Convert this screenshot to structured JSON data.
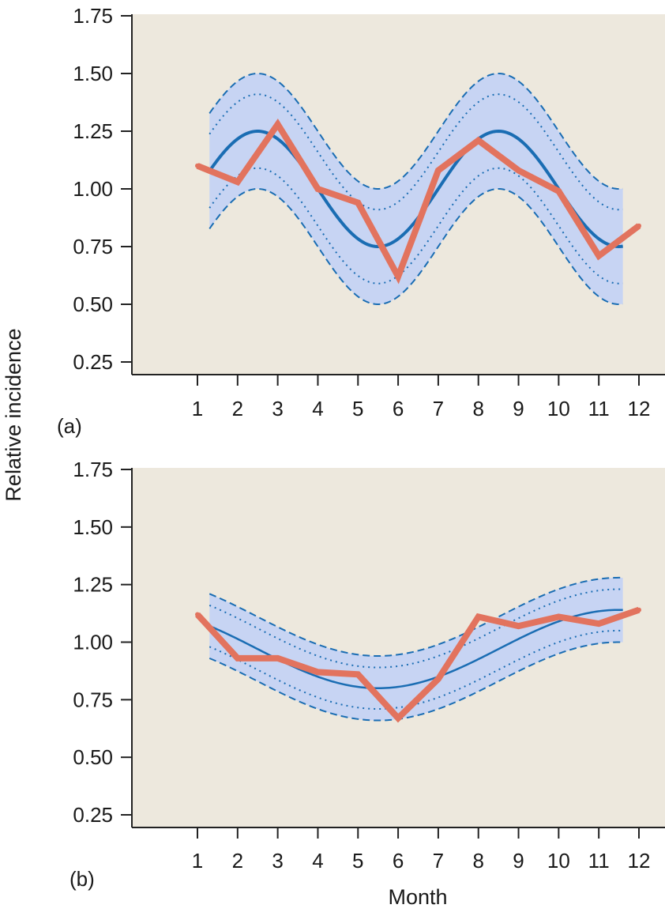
{
  "ylabel": "Relative incidence",
  "xlabel": "Month",
  "colors": {
    "background": "#ede8dd",
    "band": "#c7d4f3",
    "fit": "#1a6db3",
    "observed": "#e2735e",
    "axis": "#222222"
  },
  "chart_data": [
    {
      "type": "line",
      "panel_label": "(a)",
      "categories": [
        "1",
        "2",
        "3",
        "4",
        "5",
        "6",
        "7",
        "8",
        "9",
        "10",
        "11",
        "12"
      ],
      "x": [
        1,
        2,
        3,
        4,
        5,
        6,
        7,
        8,
        9,
        10,
        11,
        12
      ],
      "ylim": [
        0.25,
        1.75
      ],
      "yticks": [
        "0.25",
        "0.50",
        "0.75",
        "1.00",
        "1.25",
        "1.50",
        "1.75"
      ],
      "grid": false,
      "legend": "none",
      "fit_model": {
        "mean": 1.0,
        "amplitude": 0.25,
        "cycles_per_year": 2,
        "peak_month": 2.5,
        "x_range": [
          1.3,
          11.6
        ]
      },
      "bands": {
        "inner_halfwidth": 0.16,
        "outer_halfwidth": 0.25
      },
      "series": [
        {
          "values": [
            1.1,
            1.03,
            1.28,
            1.0,
            0.94,
            0.62,
            1.08,
            1.21,
            1.08,
            0.99,
            0.71,
            0.84
          ]
        }
      ]
    },
    {
      "type": "line",
      "panel_label": "(b)",
      "categories": [
        "1",
        "2",
        "3",
        "4",
        "5",
        "6",
        "7",
        "8",
        "9",
        "10",
        "11",
        "12"
      ],
      "x": [
        1,
        2,
        3,
        4,
        5,
        6,
        7,
        8,
        9,
        10,
        11,
        12
      ],
      "ylim": [
        0.25,
        1.75
      ],
      "yticks": [
        "0.25",
        "0.50",
        "0.75",
        "1.00",
        "1.25",
        "1.50",
        "1.75"
      ],
      "grid": false,
      "legend": "none",
      "fit_model": {
        "mean": 0.97,
        "amplitude": 0.17,
        "cycles_per_year": 1,
        "peak_month": 11.5,
        "x_range": [
          1.3,
          11.6
        ]
      },
      "bands": {
        "inner_halfwidth": 0.09,
        "outer_halfwidth": 0.14
      },
      "series": [
        {
          "values": [
            1.12,
            0.93,
            0.93,
            0.87,
            0.86,
            0.67,
            0.84,
            1.11,
            1.07,
            1.11,
            1.08,
            1.14
          ]
        }
      ]
    }
  ]
}
